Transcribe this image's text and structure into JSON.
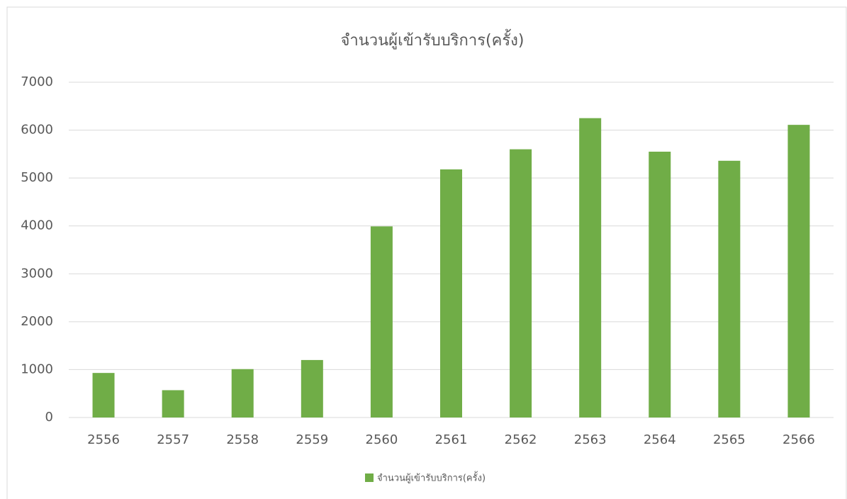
{
  "chart_data": {
    "type": "bar",
    "title": "จำนวนผู้เข้ารับบริการ(ครั้ง)",
    "categories": [
      "2556",
      "2557",
      "2558",
      "2559",
      "2560",
      "2561",
      "2562",
      "2563",
      "2564",
      "2565",
      "2566"
    ],
    "series": [
      {
        "name": "จำนวนผู้เข้ารับบริการ(ครั้ง)",
        "color": "#70ad47",
        "values": [
          930,
          570,
          1010,
          1200,
          3990,
          5180,
          5600,
          6250,
          5550,
          5360,
          6110
        ]
      }
    ],
    "ylim": [
      0,
      7000
    ],
    "yticks": [
      0,
      1000,
      2000,
      3000,
      4000,
      5000,
      6000,
      7000
    ],
    "grid": true,
    "legend": "bottom"
  }
}
